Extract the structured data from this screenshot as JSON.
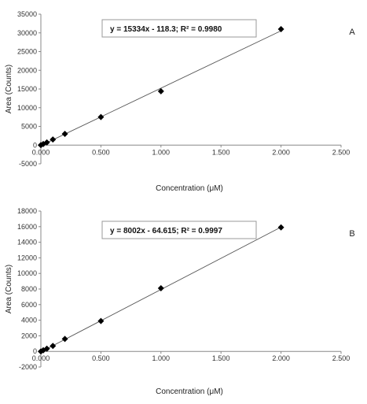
{
  "chart_data": [
    {
      "type": "scatter",
      "panel_label": "A",
      "equation": "y = 15334x - 118.3;  R² = 0.9980",
      "xlabel": "Concentration (μM)",
      "ylabel": "Area (Counts)",
      "xlim": [
        0,
        2.5
      ],
      "ylim": [
        -5000,
        35000
      ],
      "x_ticks": [
        0,
        0.5,
        1,
        1.5,
        2,
        2.5
      ],
      "x_tick_labels": [
        "0.000",
        "0.500",
        "1.000",
        "1.500",
        "2.000",
        "2.500"
      ],
      "y_ticks": [
        -5000,
        0,
        5000,
        10000,
        15000,
        20000,
        25000,
        30000,
        35000
      ],
      "y_tick_labels": [
        "-5000",
        "0",
        "5000",
        "10000",
        "15000",
        "20000",
        "25000",
        "30000",
        "35000"
      ],
      "trendline": {
        "slope": 15334,
        "intercept": -118.3
      },
      "series": [
        {
          "marker": "diamond",
          "x": [
            0,
            0.02,
            0.05,
            0.1,
            0.2,
            0.5,
            1,
            2
          ],
          "y": [
            0,
            300,
            700,
            1500,
            3000,
            7500,
            14400,
            31000
          ]
        }
      ],
      "grid": false,
      "legend": "none"
    },
    {
      "type": "scatter",
      "panel_label": "B",
      "equation": "y = 8002x - 64.615;  R² = 0.9997",
      "xlabel": "Concentration (μM)",
      "ylabel": "Area (Counts)",
      "xlim": [
        0,
        2.5
      ],
      "ylim": [
        -2000,
        18000
      ],
      "x_ticks": [
        0,
        0.5,
        1,
        1.5,
        2,
        2.5
      ],
      "x_tick_labels": [
        "0.000",
        "0.500",
        "1.000",
        "1.500",
        "2.000",
        "2.500"
      ],
      "y_ticks": [
        -2000,
        0,
        2000,
        4000,
        6000,
        8000,
        10000,
        12000,
        14000,
        16000,
        18000
      ],
      "y_tick_labels": [
        "-2000",
        "0",
        "2000",
        "4000",
        "6000",
        "8000",
        "10000",
        "12000",
        "14000",
        "16000",
        "18000"
      ],
      "trendline": {
        "slope": 8002,
        "intercept": -64.615
      },
      "series": [
        {
          "marker": "diamond",
          "x": [
            0,
            0.02,
            0.05,
            0.1,
            0.2,
            0.5,
            1,
            2
          ],
          "y": [
            0,
            150,
            350,
            700,
            1600,
            3900,
            8100,
            15900
          ]
        }
      ],
      "grid": false,
      "legend": "none"
    }
  ],
  "colors": {
    "marker": "#000000",
    "trendline": "#555555",
    "axis": "#888888",
    "text": "#222222"
  }
}
